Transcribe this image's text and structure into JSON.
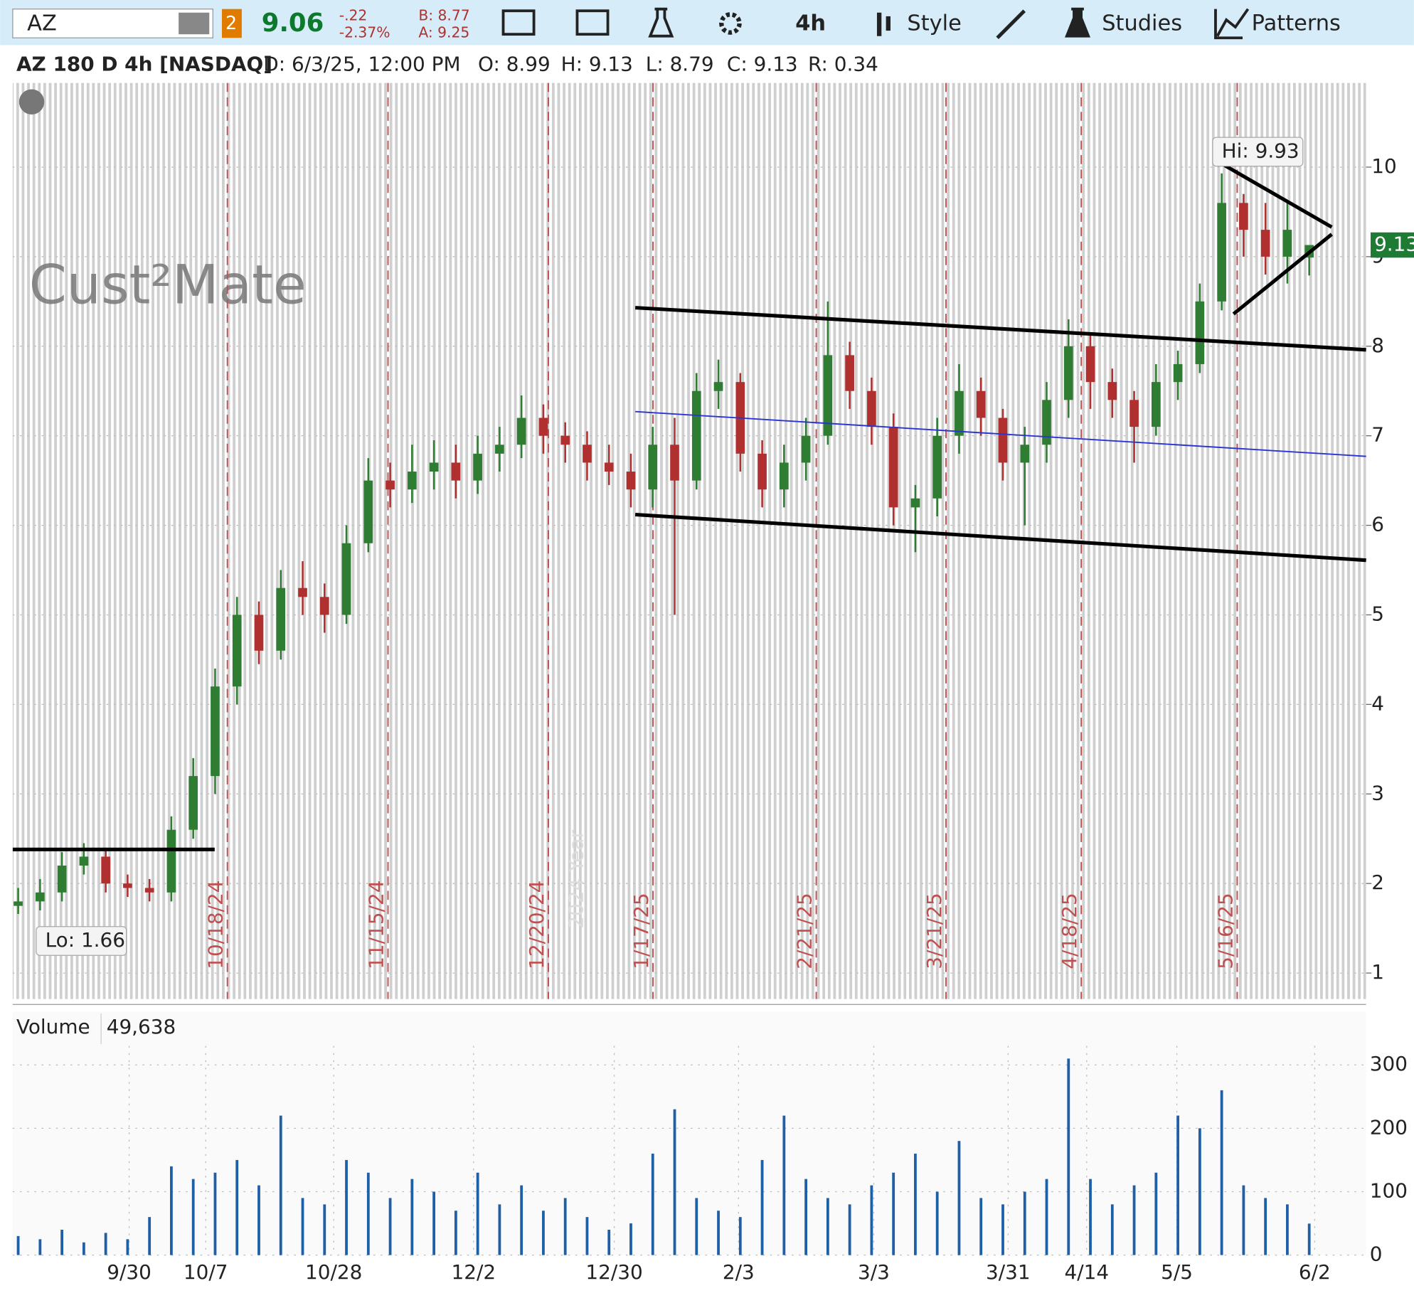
{
  "toolbar": {
    "symbol": "AZ",
    "link": "2",
    "last": "9.06",
    "change": "-.22",
    "change_pct": "-2.37%",
    "bid": "B: 8.77",
    "ask": "A: 9.25",
    "aggregation": "4h",
    "style": "Style",
    "studies": "Studies",
    "patterns": "Patterns"
  },
  "info": {
    "title": "AZ 180 D 4h [NASDAQ]",
    "date": "D: 6/3/25, 12:00 PM",
    "open": "O: 8.99",
    "high": "H: 9.13",
    "low": "L: 8.79",
    "close": "C: 9.13",
    "range": "R: 0.34"
  },
  "watermark": "Cust²Mate",
  "year_label": "2024 Year",
  "chart_data": [
    {
      "type": "candlestick",
      "open": [
        1.75,
        1.8,
        1.9,
        2.2,
        2.3,
        2.0,
        1.95,
        1.9,
        2.6,
        3.2,
        4.2,
        5.0,
        4.6,
        5.3,
        5.2,
        5.0,
        5.8,
        6.5,
        6.4,
        6.6,
        6.7,
        6.5,
        6.8,
        6.9,
        7.2,
        7.0,
        6.9,
        6.7,
        6.6,
        6.4,
        6.9,
        6.5,
        7.5,
        7.6,
        6.8,
        6.4,
        6.7,
        7.0,
        7.9,
        7.5,
        7.1,
        6.2,
        6.3,
        7.0,
        7.5,
        7.2,
        6.7,
        6.9,
        7.4,
        8.0,
        7.6,
        7.4,
        7.1,
        7.6,
        7.8,
        8.5,
        9.6,
        9.3,
        9.0,
        8.99
      ],
      "high": [
        1.95,
        2.05,
        2.35,
        2.45,
        2.4,
        2.1,
        2.05,
        2.75,
        3.4,
        4.4,
        5.2,
        5.15,
        5.5,
        5.6,
        5.35,
        6.0,
        6.75,
        6.7,
        6.9,
        6.95,
        6.9,
        7.0,
        7.1,
        7.45,
        7.35,
        7.15,
        7.05,
        6.9,
        6.8,
        7.1,
        7.2,
        7.7,
        7.85,
        7.7,
        6.95,
        6.9,
        7.2,
        8.5,
        8.05,
        7.65,
        7.25,
        6.45,
        7.2,
        7.8,
        7.65,
        7.3,
        7.1,
        7.6,
        8.3,
        8.15,
        7.75,
        7.5,
        7.8,
        7.95,
        8.7,
        9.93,
        9.7,
        9.6,
        9.6,
        9.13
      ],
      "low": [
        1.66,
        1.7,
        1.8,
        2.1,
        1.9,
        1.85,
        1.8,
        1.8,
        2.5,
        3.0,
        4.0,
        4.45,
        4.5,
        5.0,
        4.8,
        4.9,
        5.7,
        6.2,
        6.25,
        6.4,
        6.3,
        6.35,
        6.6,
        6.75,
        6.8,
        6.7,
        6.5,
        6.45,
        6.2,
        6.2,
        5.0,
        6.4,
        7.3,
        6.6,
        6.2,
        6.2,
        6.5,
        6.9,
        7.3,
        6.9,
        6.0,
        5.7,
        6.1,
        6.8,
        7.0,
        6.5,
        6.0,
        6.7,
        7.2,
        7.3,
        7.2,
        6.7,
        7.0,
        7.4,
        7.7,
        8.4,
        9.0,
        8.8,
        8.7,
        8.79
      ],
      "close": [
        1.8,
        1.9,
        2.2,
        2.3,
        2.0,
        1.95,
        1.9,
        2.6,
        3.2,
        4.2,
        5.0,
        4.6,
        5.3,
        5.2,
        5.0,
        5.8,
        6.5,
        6.4,
        6.6,
        6.7,
        6.5,
        6.8,
        6.9,
        7.2,
        7.0,
        6.9,
        6.7,
        6.6,
        6.4,
        6.9,
        6.5,
        7.5,
        7.6,
        6.8,
        6.4,
        6.7,
        7.0,
        7.9,
        7.5,
        7.1,
        6.2,
        6.3,
        7.0,
        7.5,
        7.2,
        6.7,
        6.9,
        7.4,
        8.0,
        7.6,
        7.4,
        7.1,
        7.6,
        7.8,
        8.5,
        9.6,
        9.3,
        9.0,
        9.3,
        9.13
      ],
      "up_color": "#2e7d32",
      "down_color": "#b03030",
      "xlim": [
        -0.25,
        61.6
      ],
      "ylim": [
        0.71,
        10.94
      ],
      "yticks": [
        1,
        2,
        3,
        4,
        5,
        6,
        7,
        8,
        9,
        10
      ],
      "last_price": 9.13,
      "last_color": "#1e7b34",
      "date_markers": [
        {
          "value": 9.56,
          "label": "10/18/24"
        },
        {
          "value": 16.9,
          "label": "11/15/24"
        },
        {
          "value": 24.23,
          "label": "12/20/24"
        },
        {
          "value": 29.01,
          "label": "1/17/25"
        },
        {
          "value": 36.47,
          "label": "2/21/25"
        },
        {
          "value": 42.4,
          "label": "3/21/25"
        },
        {
          "value": 48.58,
          "label": "4/18/25"
        },
        {
          "value": 55.71,
          "label": "5/16/25"
        }
      ],
      "annotations": [
        {
          "text": "Hi: 9.93",
          "x": 55,
          "y": 9.93
        },
        {
          "text": "Lo: 1.66",
          "x": 0,
          "y": 1.66
        }
      ],
      "lines": [
        {
          "x": [
            28.2,
            61.6
          ],
          "y": [
            8.43,
            7.96
          ],
          "color": "#000000"
        },
        {
          "x": [
            28.2,
            61.6
          ],
          "y": [
            6.12,
            5.61
          ],
          "color": "#000000"
        },
        {
          "x": [
            28.2,
            61.6
          ],
          "y": [
            7.27,
            6.77
          ],
          "color": "#2a35d0"
        },
        {
          "x": [
            -0.25,
            8.98
          ],
          "y": [
            2.38,
            2.38
          ],
          "color": "#000000"
        },
        {
          "x": [
            55.13,
            60.03
          ],
          "y": [
            10.02,
            9.33
          ],
          "color": "#000000"
        },
        {
          "x": [
            55.54,
            60.03
          ],
          "y": [
            8.36,
            9.25
          ],
          "color": "#000000"
        }
      ]
    },
    {
      "type": "bar",
      "title": "Volume",
      "current": "49,638",
      "values": [
        30,
        25,
        40,
        20,
        35,
        25,
        60,
        140,
        120,
        130,
        150,
        110,
        220,
        90,
        80,
        150,
        130,
        90,
        120,
        100,
        70,
        130,
        80,
        110,
        70,
        90,
        60,
        40,
        50,
        160,
        230,
        90,
        70,
        60,
        150,
        220,
        120,
        90,
        80,
        110,
        130,
        160,
        100,
        180,
        90,
        80,
        100,
        120,
        310,
        120,
        80,
        110,
        130,
        220,
        200,
        260,
        110,
        90,
        80,
        49.638
      ],
      "color": "#1f5fa8",
      "xlim": [
        -0.25,
        61.6
      ],
      "ylim": [
        0,
        330
      ],
      "yticks": [
        0,
        100,
        200,
        300
      ],
      "xticks": [
        {
          "value": 5.07,
          "label": "9/30"
        },
        {
          "value": 8.57,
          "label": "10/7"
        },
        {
          "value": 14.42,
          "label": "10/28"
        },
        {
          "value": 20.81,
          "label": "12/2"
        },
        {
          "value": 27.24,
          "label": "12/30"
        },
        {
          "value": 32.92,
          "label": "2/3"
        },
        {
          "value": 39.1,
          "label": "3/3"
        },
        {
          "value": 45.24,
          "label": "3/31"
        },
        {
          "value": 48.83,
          "label": "4/14"
        },
        {
          "value": 52.95,
          "label": "5/5"
        },
        {
          "value": 59.25,
          "label": "6/2"
        }
      ]
    }
  ]
}
